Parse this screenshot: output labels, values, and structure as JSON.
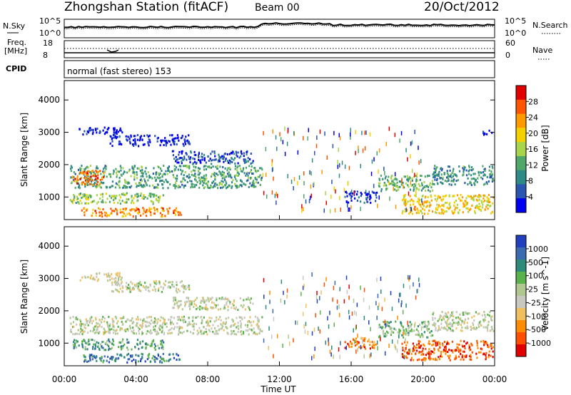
{
  "header": {
    "station": "Zhongshan Station (fitACF)",
    "beam": "Beam 00",
    "date": "20/Oct/2012"
  },
  "summary_panels": {
    "nsky_label": "N.Sky",
    "nsky_ticks": [
      "10^5",
      "10^0"
    ],
    "nsearch_label": "N.Search",
    "nsearch_ticks": [
      "10^5",
      "10^0"
    ],
    "freq_label": "Freq.",
    "freq_unit": "[MHz]",
    "freq_ticks": [
      "18",
      "8"
    ],
    "nave_label": "Nave",
    "nave_ticks": [
      "60",
      "0"
    ],
    "cpid_label": "CPID",
    "cpid_text": "normal (fast stereo) 153"
  },
  "chart_data": [
    {
      "type": "heatmap",
      "title": "",
      "panel": "power",
      "xlabel": "",
      "ylabel": "Slant Range [km]",
      "ylim": [
        300,
        4600
      ],
      "y_ticks": [
        "4000",
        "3000",
        "2000",
        "1000"
      ],
      "xlim": [
        "00:00",
        "24:00"
      ],
      "colorbar_label": "Power [dB]",
      "colorbar_ticks": [
        "28",
        "24",
        "20",
        "16",
        "12",
        "8",
        "4"
      ],
      "colorbar_colors": [
        "#e10000",
        "#ff5400",
        "#ff9900",
        "#f5d000",
        "#a8d54a",
        "#4fa86a",
        "#2e8a86",
        "#2a55b0",
        "#0000ee"
      ],
      "scatter_regions": [
        {
          "t0": 0.8,
          "t1": 3.2,
          "r0": 2950,
          "r1": 3200,
          "level": 0.05
        },
        {
          "t0": 2.5,
          "t1": 7.0,
          "r0": 2600,
          "r1": 2950,
          "level": 0.08
        },
        {
          "t0": 6.0,
          "t1": 10.5,
          "r0": 2050,
          "r1": 2450,
          "level": 0.15
        },
        {
          "t0": 0.3,
          "t1": 11.0,
          "r0": 1300,
          "r1": 2000,
          "level": 0.35
        },
        {
          "t0": 0.4,
          "t1": 2.2,
          "r0": 1400,
          "r1": 1850,
          "level": 0.8
        },
        {
          "t0": 0.3,
          "t1": 5.5,
          "r0": 820,
          "r1": 1150,
          "level": 0.45
        },
        {
          "t0": 0.8,
          "t1": 6.5,
          "r0": 430,
          "r1": 700,
          "level": 0.75
        },
        {
          "t0": 15.6,
          "t1": 17.4,
          "r0": 850,
          "r1": 1200,
          "level": 0.1
        },
        {
          "t0": 17.5,
          "t1": 20.5,
          "r0": 1200,
          "r1": 1700,
          "level": 0.4
        },
        {
          "t0": 18.8,
          "t1": 23.9,
          "r0": 500,
          "r1": 1100,
          "level": 0.6
        },
        {
          "t0": 20.5,
          "t1": 23.9,
          "r0": 1400,
          "r1": 2000,
          "level": 0.3
        },
        {
          "t0": 23.3,
          "t1": 23.95,
          "r0": 2950,
          "r1": 3100,
          "level": 0.05
        }
      ]
    },
    {
      "type": "heatmap",
      "title": "",
      "panel": "velocity",
      "xlabel": "Time UT",
      "ylabel": "Slant Range [km]",
      "ylim": [
        300,
        4600
      ],
      "y_ticks": [
        "4000",
        "3000",
        "2000",
        "1000"
      ],
      "x_ticks": [
        "00:00",
        "04:00",
        "08:00",
        "12:00",
        "16:00",
        "20:00",
        "00:00"
      ],
      "xlim": [
        "00:00",
        "24:00"
      ],
      "colorbar_label": "Velocity [m s^-1]",
      "colorbar_ticks": [
        "1000",
        "500",
        "100",
        "25",
        "-25",
        "-100",
        "-500",
        "-1000"
      ],
      "colorbar_colors": [
        "#2040c0",
        "#3a6ab0",
        "#2e8a7a",
        "#5ab34a",
        "#b0c890",
        "#c8c8c0",
        "#f0c060",
        "#ff8c00",
        "#ff5000",
        "#e00000"
      ],
      "scatter_regions": [
        {
          "t0": 0.8,
          "t1": 3.2,
          "r0": 2950,
          "r1": 3200,
          "level": 0.45
        },
        {
          "t0": 2.5,
          "t1": 7.0,
          "r0": 2600,
          "r1": 2950,
          "level": 0.5
        },
        {
          "t0": 6.0,
          "t1": 10.5,
          "r0": 2050,
          "r1": 2450,
          "level": 0.5
        },
        {
          "t0": 0.3,
          "t1": 11.0,
          "r0": 1300,
          "r1": 1850,
          "level": 0.5
        },
        {
          "t0": 0.4,
          "t1": 5.5,
          "r0": 820,
          "r1": 1150,
          "level": 0.7
        },
        {
          "t0": 1.0,
          "t1": 6.5,
          "r0": 430,
          "r1": 700,
          "level": 0.8
        },
        {
          "t0": 15.6,
          "t1": 17.4,
          "r0": 850,
          "r1": 1200,
          "level": 0.2
        },
        {
          "t0": 17.5,
          "t1": 20.5,
          "r0": 1200,
          "r1": 1700,
          "level": 0.6
        },
        {
          "t0": 18.8,
          "t1": 23.9,
          "r0": 500,
          "r1": 1100,
          "level": 0.15
        },
        {
          "t0": 20.5,
          "t1": 23.9,
          "r0": 1400,
          "r1": 2000,
          "level": 0.5
        }
      ]
    }
  ]
}
